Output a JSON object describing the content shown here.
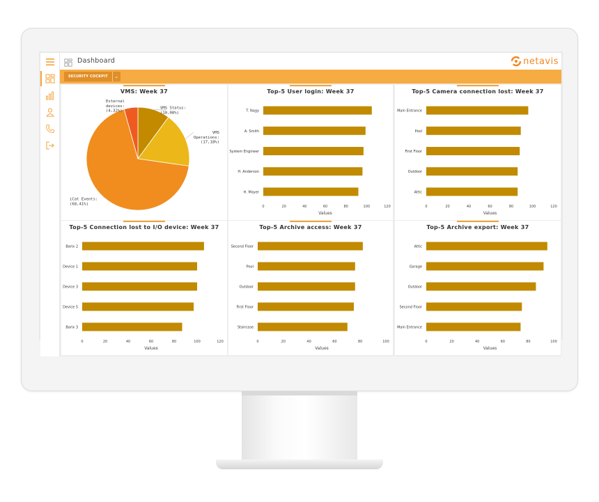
{
  "app": {
    "title": "Dashboard",
    "logo_text": "netavis",
    "workspace_selector": "SECURITY COCKPIT",
    "accent_color": "#f3a33a",
    "bar_color": "#c18a00",
    "sidebar_icons": [
      "menu-icon",
      "dashboard-icon",
      "chart-icon",
      "user-icon",
      "phone-icon",
      "logout-icon"
    ]
  },
  "charts": {
    "pie": {
      "title": "VMS: Week 37",
      "chart_data": {
        "type": "pie",
        "title": "VMS: Week 37",
        "slices": [
          {
            "name": "VMS Status:",
            "value_label": "(10,08%)",
            "value": 10.08,
            "color": "#c38a00"
          },
          {
            "name": "VMS Operations:",
            "value_label": "(17,18%)",
            "value": 17.18,
            "color": "#ecb718"
          },
          {
            "name": "iCat Events:",
            "value_label": "(68,41%)",
            "value": 68.41,
            "color": "#f08d1e"
          },
          {
            "name": "External devices:",
            "value_label": "(4,32%)",
            "value": 4.32,
            "color": "#ef5b1f"
          }
        ]
      }
    },
    "bars": [
      {
        "key": "user_login",
        "title": "Top-5 User login: Week 37",
        "chart_data": {
          "type": "bar",
          "orientation": "horizontal",
          "title": "Top-5 User login: Week 37",
          "categories": [
            "T. Nagy",
            "A. Smith",
            "System Engineer",
            "H. Anderson",
            "H. Mayer"
          ],
          "values": [
            105,
            99,
            97,
            96,
            92
          ],
          "xlabel": "Values",
          "xlim": [
            0,
            120
          ],
          "ticks": [
            0,
            20,
            40,
            60,
            80,
            100,
            120
          ]
        }
      },
      {
        "key": "camera_lost",
        "title": "Top-5 Camera connection lost: Week 37",
        "chart_data": {
          "type": "bar",
          "orientation": "horizontal",
          "title": "Top-5 Camera connection lost: Week 37",
          "categories": [
            "Main Entrance",
            "Pool",
            "First Floor",
            "Outdoor",
            "Attic"
          ],
          "values": [
            96,
            89,
            88,
            86,
            86
          ],
          "xlabel": "Values",
          "xlim": [
            0,
            120
          ],
          "ticks": [
            0,
            20,
            40,
            60,
            80,
            100,
            120
          ]
        }
      },
      {
        "key": "io_lost",
        "title": "Top-5 Connection lost to I/O device: Week 37",
        "chart_data": {
          "type": "bar",
          "orientation": "horizontal",
          "title": "Top-5 Connection lost to I/O device: Week 37",
          "categories": [
            "Barix 2",
            "Device 1",
            "Device 3",
            "Device 5",
            "Barix 3"
          ],
          "values": [
            106,
            100,
            100,
            97,
            87
          ],
          "xlabel": "Values",
          "xlim": [
            0,
            120
          ],
          "ticks": [
            0,
            20,
            40,
            60,
            80,
            100,
            120
          ]
        }
      },
      {
        "key": "archive_access",
        "title": "Top-5 Archive access: Week 37",
        "chart_data": {
          "type": "bar",
          "orientation": "horizontal",
          "title": "Top-5 Archive access: Week 37",
          "categories": [
            "Second Floor",
            "Pool",
            "Outdoor",
            "First Floor",
            "Staircase"
          ],
          "values": [
            82,
            76,
            76,
            75,
            70
          ],
          "xlabel": "Values",
          "xlim": [
            0,
            100
          ],
          "ticks": [
            0,
            20,
            40,
            60,
            80,
            100
          ]
        }
      },
      {
        "key": "archive_export",
        "title": "Top-5 Archive export: Week 37",
        "chart_data": {
          "type": "bar",
          "orientation": "horizontal",
          "title": "Top-5 Archive export: Week 37",
          "categories": [
            "Attic",
            "Garage",
            "Outdoor",
            "Second Floor",
            "Main Entrance"
          ],
          "values": [
            95,
            92,
            86,
            75,
            74
          ],
          "xlabel": "Values",
          "xlim": [
            0,
            100
          ],
          "ticks": [
            0,
            20,
            40,
            60,
            80,
            100
          ]
        }
      }
    ]
  }
}
